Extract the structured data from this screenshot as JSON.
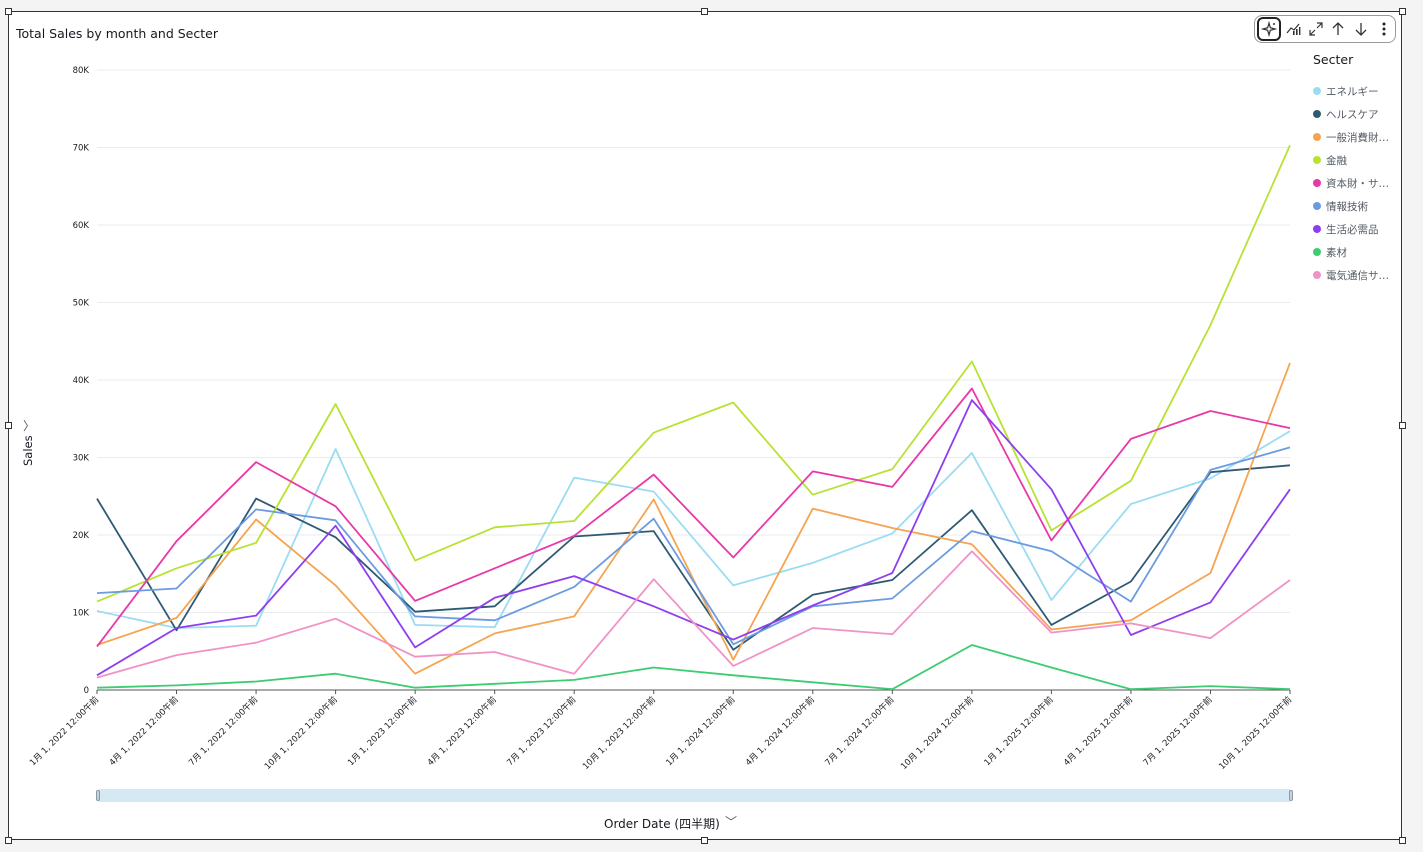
{
  "chart_title": "Total Sales by month and Secter",
  "toolbar": {
    "icons": [
      "sparkle-insight-icon",
      "forecast-chart-icon",
      "expand-icon",
      "sort-ascending-icon",
      "sort-descending-icon",
      "more-options-icon"
    ]
  },
  "legend": {
    "title": "Secter"
  },
  "axis": {
    "y_label": "Sales",
    "x_label": "Order Date (四半期)",
    "chevron_right": "〉",
    "chevron_down": "﹀"
  },
  "chart_data": {
    "type": "line",
    "title": "Total Sales by month and Secter",
    "xlabel": "Order Date (四半期)",
    "ylabel": "Sales",
    "ylim": [
      0,
      80000
    ],
    "y_ticks": [
      "0",
      "10K",
      "20K",
      "30K",
      "40K",
      "50K",
      "60K",
      "70K",
      "80K"
    ],
    "grid": true,
    "legend_position": "right",
    "x": [
      "1月 1, 2022 12:00午前",
      "4月 1, 2022 12:00午前",
      "7月 1, 2022 12:00午前",
      "10月 1, 2022 12:00午前",
      "1月 1, 2023 12:00午前",
      "4月 1, 2023 12:00午前",
      "7月 1, 2023 12:00午前",
      "10月 1, 2023 12:00午前",
      "1月 1, 2024 12:00午前",
      "4月 1, 2024 12:00午前",
      "7月 1, 2024 12:00午前",
      "10月 1, 2024 12:00午前",
      "1月 1, 2025 12:00午前",
      "4月 1, 2025 12:00午前",
      "7月 1, 2025 12:00午前",
      "10月 1, 2025 12:00午前"
    ],
    "series": [
      {
        "name": "エネルギー",
        "color": "#9bdcf2",
        "values": [
          10200,
          8000,
          8300,
          31100,
          8400,
          8100,
          27400,
          25600,
          13500,
          16400,
          20200,
          30600,
          11600,
          24000,
          27300,
          33400
        ]
      },
      {
        "name": "ヘルスケア",
        "color": "#2e5b73",
        "values": [
          24700,
          7700,
          24700,
          19700,
          10100,
          10800,
          19800,
          20500,
          5200,
          12300,
          14200,
          23200,
          8400,
          14000,
          28100,
          29000
        ]
      },
      {
        "name": "一般消費財…",
        "color": "#f5a452",
        "values": [
          5800,
          9300,
          22000,
          13500,
          2100,
          7300,
          9500,
          24600,
          3900,
          23400,
          20900,
          18800,
          7800,
          9000,
          15100,
          42200
        ]
      },
      {
        "name": "金融",
        "color": "#b8e232",
        "values": [
          11400,
          15700,
          19000,
          36900,
          16700,
          21000,
          21800,
          33200,
          37100,
          25200,
          28500,
          42400,
          20600,
          27000,
          47100,
          70300
        ]
      },
      {
        "name": "資本財・サ…",
        "color": "#e838a9",
        "values": [
          5600,
          19200,
          29400,
          23700,
          11500,
          15700,
          19900,
          27800,
          17100,
          28200,
          26200,
          38900,
          19300,
          32400,
          36000,
          33800
        ]
      },
      {
        "name": "情報技術",
        "color": "#6b9be0",
        "values": [
          12500,
          13100,
          23300,
          21900,
          9500,
          9000,
          13300,
          22100,
          5900,
          10800,
          11800,
          20500,
          17900,
          11400,
          28400,
          31300
        ]
      },
      {
        "name": "生活必需品",
        "color": "#8e3ef0",
        "values": [
          1900,
          8000,
          9600,
          21200,
          5500,
          11900,
          14700,
          10800,
          6500,
          10900,
          15100,
          37400,
          25900,
          7100,
          11300,
          25900
        ]
      },
      {
        "name": "素材",
        "color": "#3dcc72",
        "values": [
          300,
          600,
          1100,
          2100,
          300,
          800,
          1300,
          2900,
          1900,
          1000,
          100,
          5800,
          2900,
          100,
          500,
          100
        ]
      },
      {
        "name": "電気通信サ…",
        "color": "#f192c6",
        "values": [
          1600,
          4500,
          6100,
          9200,
          4300,
          4900,
          2100,
          14300,
          3100,
          8000,
          7200,
          17900,
          7400,
          8600,
          6700,
          14200
        ]
      }
    ]
  }
}
